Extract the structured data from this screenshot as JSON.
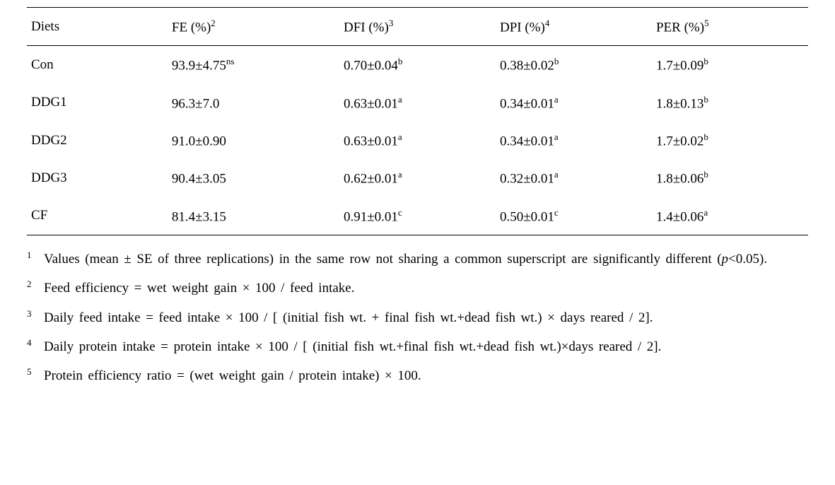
{
  "table": {
    "columns": [
      {
        "label": "Diets",
        "sup": null
      },
      {
        "label": "FE (%)",
        "sup": "2"
      },
      {
        "label": "DFI (%)",
        "sup": "3"
      },
      {
        "label": "DPI (%)",
        "sup": "4"
      },
      {
        "label": "PER (%)",
        "sup": "5"
      }
    ],
    "rows": [
      {
        "diet": "Con",
        "fe": {
          "val": "93.9±4.75",
          "sup": "ns"
        },
        "dfi": {
          "val": "0.70±0.04",
          "sup": "b"
        },
        "dpi": {
          "val": "0.38±0.02",
          "sup": "b"
        },
        "per": {
          "val": "1.7±0.09",
          "sup": "b"
        }
      },
      {
        "diet": "DDG1",
        "fe": {
          "val": "96.3±7.0",
          "sup": ""
        },
        "dfi": {
          "val": "0.63±0.01",
          "sup": "a"
        },
        "dpi": {
          "val": "0.34±0.01",
          "sup": "a"
        },
        "per": {
          "val": "1.8±0.13",
          "sup": "b"
        }
      },
      {
        "diet": "DDG2",
        "fe": {
          "val": "91.0±0.90",
          "sup": ""
        },
        "dfi": {
          "val": "0.63±0.01",
          "sup": "a"
        },
        "dpi": {
          "val": "0.34±0.01",
          "sup": "a"
        },
        "per": {
          "val": "1.7±0.02",
          "sup": "b"
        }
      },
      {
        "diet": "DDG3",
        "fe": {
          "val": "90.4±3.05",
          "sup": ""
        },
        "dfi": {
          "val": "0.62±0.01",
          "sup": "a"
        },
        "dpi": {
          "val": "0.32±0.01",
          "sup": "a"
        },
        "per": {
          "val": "1.8±0.06",
          "sup": "b"
        }
      },
      {
        "diet": "CF",
        "fe": {
          "val": "81.4±3.15",
          "sup": ""
        },
        "dfi": {
          "val": "0.91±0.01",
          "sup": "c"
        },
        "dpi": {
          "val": "0.50±0.01",
          "sup": "c"
        },
        "per": {
          "val": "1.4±0.06",
          "sup": "a"
        }
      }
    ]
  },
  "footnotes": {
    "n1_a": "Values (mean ± SE of three replications) in the same row not sharing a common superscript are significantly different (",
    "n1_b": "p",
    "n1_c": "<0.05).",
    "n2": "Feed efficiency = wet weight gain × 100 / feed intake.",
    "n3": "Daily feed intake = feed intake × 100 / [ (initial fish wt. + final fish wt.+dead fish wt.) × days reared / 2].",
    "n4": "Daily protein intake = protein intake × 100 / [ (initial fish wt.+final fish wt.+dead fish wt.)×days reared / 2].",
    "n5": "Protein efficiency ratio = (wet weight gain / protein intake) × 100."
  },
  "style": {
    "font_family": "Times New Roman",
    "font_size_body": 19,
    "font_size_sup": 13,
    "text_color": "#000000",
    "background_color": "#ffffff",
    "border_color": "#000000",
    "row_vpad": 14
  }
}
